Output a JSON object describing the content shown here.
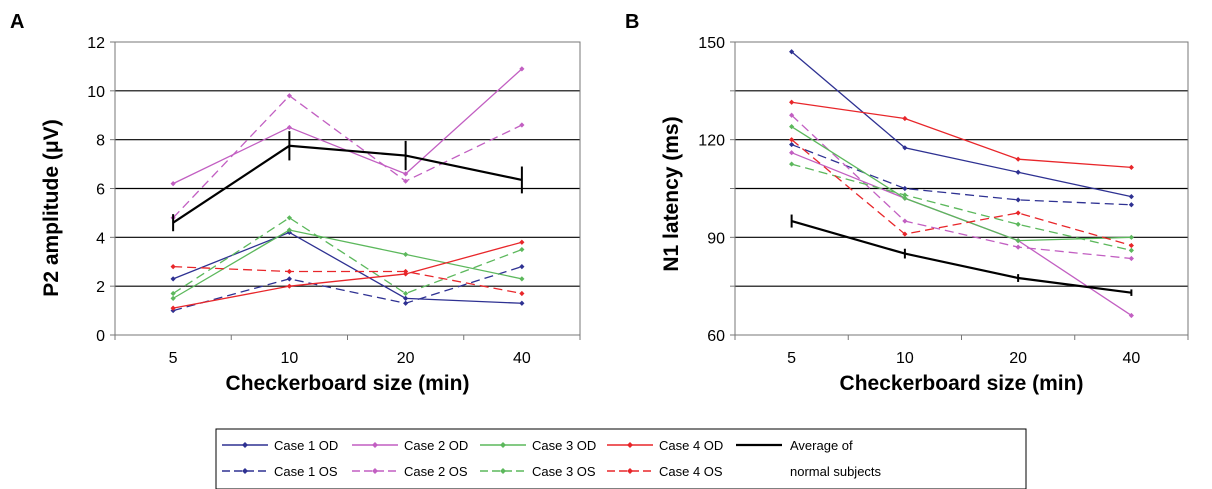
{
  "chart_data": [
    {
      "panel": "A",
      "type": "line",
      "categories": [
        "5",
        "10",
        "20",
        "40"
      ],
      "xlabel": "Checkerboard size (min)",
      "ylabel": "P2 amplitude (μV)",
      "ylim": [
        0,
        12
      ],
      "yticks": [
        0,
        2,
        4,
        6,
        8,
        10,
        12
      ],
      "series": [
        {
          "name": "Case 1 OD",
          "values": [
            2.3,
            4.2,
            1.5,
            1.3
          ],
          "color": "#2e3192",
          "dash": "solid"
        },
        {
          "name": "Case 1 OS",
          "values": [
            1.0,
            2.3,
            1.3,
            2.8
          ],
          "color": "#2e3192",
          "dash": "dashed"
        },
        {
          "name": "Case 2 OD",
          "values": [
            6.2,
            8.5,
            6.6,
            10.9
          ],
          "color": "#c25fc2",
          "dash": "solid"
        },
        {
          "name": "Case 2 OS",
          "values": [
            4.8,
            9.8,
            6.3,
            8.6
          ],
          "color": "#c25fc2",
          "dash": "dashed"
        },
        {
          "name": "Case 3 OD",
          "values": [
            1.5,
            4.3,
            3.3,
            2.3
          ],
          "color": "#5cb85c",
          "dash": "solid"
        },
        {
          "name": "Case 3 OS",
          "values": [
            1.7,
            4.8,
            1.7,
            3.5
          ],
          "color": "#5cb85c",
          "dash": "dashed"
        },
        {
          "name": "Case 4 OD",
          "values": [
            1.1,
            2.0,
            2.5,
            3.8
          ],
          "color": "#e8262a",
          "dash": "solid"
        },
        {
          "name": "Case 4 OS",
          "values": [
            2.8,
            2.6,
            2.6,
            1.7
          ],
          "color": "#e8262a",
          "dash": "dashed"
        },
        {
          "name": "Average of normal subjects",
          "values": [
            4.6,
            7.75,
            7.35,
            6.35
          ],
          "errors": [
            0.35,
            0.6,
            0.6,
            0.55
          ],
          "color": "#000000",
          "dash": "solid",
          "average": true
        }
      ]
    },
    {
      "panel": "B",
      "type": "line",
      "categories": [
        "5",
        "10",
        "20",
        "40"
      ],
      "xlabel": "Checkerboard size (min)",
      "ylabel": "N1 latency (ms)",
      "ylim": [
        60,
        150
      ],
      "yticks": [
        60,
        75,
        90,
        105,
        120,
        135,
        150
      ],
      "ytick_labels": [
        "60",
        "",
        "90",
        "",
        "120",
        "",
        "150"
      ],
      "series": [
        {
          "name": "Case 1 OD",
          "values": [
            147,
            117.5,
            110,
            102.5
          ],
          "color": "#2e3192",
          "dash": "solid"
        },
        {
          "name": "Case 1 OS",
          "values": [
            118.5,
            105,
            101.5,
            100
          ],
          "color": "#2e3192",
          "dash": "dashed"
        },
        {
          "name": "Case 2 OD",
          "values": [
            116,
            102,
            89,
            66
          ],
          "color": "#c25fc2",
          "dash": "solid"
        },
        {
          "name": "Case 2 OS",
          "values": [
            127.5,
            95,
            87,
            83.5
          ],
          "color": "#c25fc2",
          "dash": "dashed"
        },
        {
          "name": "Case 3 OD",
          "values": [
            124,
            102,
            89,
            90
          ],
          "color": "#5cb85c",
          "dash": "solid"
        },
        {
          "name": "Case 3 OS",
          "values": [
            112.5,
            103,
            94,
            86
          ],
          "color": "#5cb85c",
          "dash": "dashed"
        },
        {
          "name": "Case 4 OD",
          "values": [
            131.5,
            126.5,
            114,
            111.5
          ],
          "color": "#e8262a",
          "dash": "solid"
        },
        {
          "name": "Case 4 OS",
          "values": [
            120,
            91,
            97.5,
            87.5
          ],
          "color": "#e8262a",
          "dash": "dashed"
        },
        {
          "name": "Average of normal subjects",
          "values": [
            95,
            85,
            77.5,
            73
          ],
          "errors": [
            2,
            1.5,
            1.2,
            1
          ],
          "color": "#000000",
          "dash": "solid",
          "average": true
        }
      ]
    }
  ],
  "legend": {
    "items": [
      {
        "label": "Case 1 OD",
        "color": "#2e3192",
        "dash": "solid"
      },
      {
        "label": "Case 2 OD",
        "color": "#c25fc2",
        "dash": "solid"
      },
      {
        "label": "Case 3 OD",
        "color": "#5cb85c",
        "dash": "solid"
      },
      {
        "label": "Case 4 OD",
        "color": "#e8262a",
        "dash": "solid"
      },
      {
        "label": "Case 1 OS",
        "color": "#2e3192",
        "dash": "dashed"
      },
      {
        "label": "Case 2 OS",
        "color": "#c25fc2",
        "dash": "dashed"
      },
      {
        "label": "Case 3 OS",
        "color": "#5cb85c",
        "dash": "dashed"
      },
      {
        "label": "Case 4 OS",
        "color": "#e8262a",
        "dash": "dashed"
      }
    ],
    "average_label_line1": "Average of",
    "average_label_line2": "normal subjects",
    "average_color": "#000000"
  }
}
